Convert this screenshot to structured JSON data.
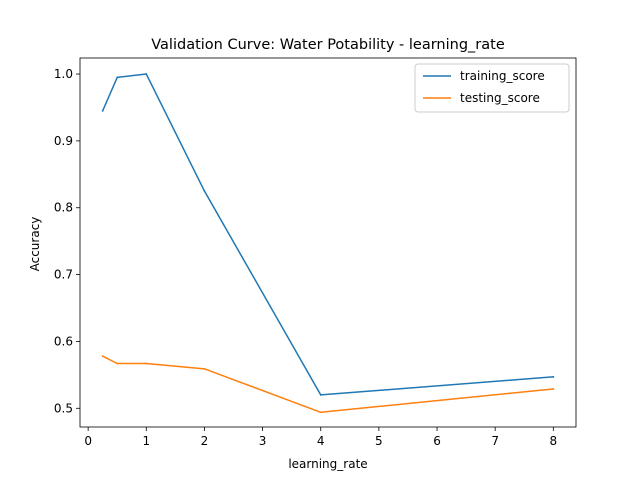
{
  "chart_data": {
    "type": "line",
    "title": "Validation Curve: Water Potability - learning_rate",
    "xlabel": "learning_rate",
    "ylabel": "Accuracy",
    "xlim": [
      -0.14,
      8.39
    ],
    "ylim": [
      0.472,
      1.024
    ],
    "xticks": [
      0,
      1,
      2,
      3,
      4,
      5,
      6,
      7,
      8
    ],
    "yticks": [
      0.5,
      0.6,
      0.7,
      0.8,
      0.9,
      1.0
    ],
    "ytick_labels": [
      "0.5",
      "0.6",
      "0.7",
      "0.8",
      "0.9",
      "1.0"
    ],
    "grid": false,
    "legend_position": "top-right",
    "x": [
      0.25,
      0.5,
      1,
      2,
      4,
      8
    ],
    "series": [
      {
        "name": "training_score",
        "color": "#1f77b4",
        "values": [
          0.945,
          0.995,
          1.0,
          0.825,
          0.52,
          0.547
        ]
      },
      {
        "name": "testing_score",
        "color": "#ff7f0e",
        "values": [
          0.578,
          0.567,
          0.567,
          0.559,
          0.494,
          0.529
        ]
      }
    ]
  }
}
